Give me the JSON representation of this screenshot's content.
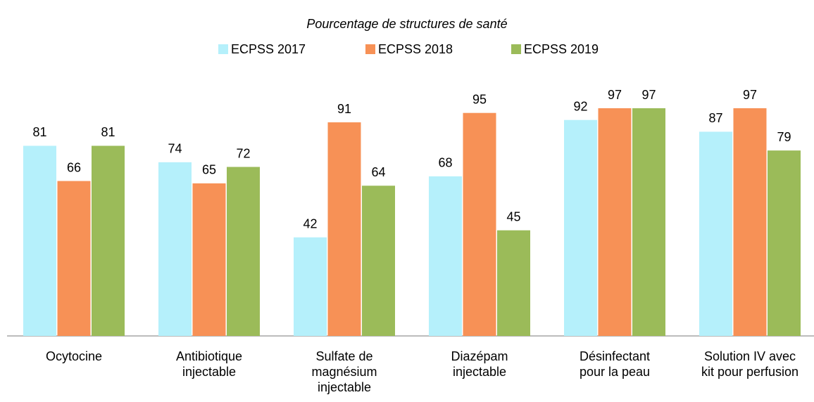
{
  "chart_data": {
    "type": "bar",
    "title": "Pourcentage de structures de santé",
    "categories": [
      "Ocytocine",
      "Antibiotique\ninjectable",
      "Sulfate de\nmagnésium\ninjectable",
      "Diazépam\ninjectable",
      "Désinfectant\npour la peau",
      "Solution IV avec\nkit pour perfusion"
    ],
    "series": [
      {
        "name": "ECPSS 2017",
        "color": "#b5f0fb",
        "values": [
          81,
          74,
          42,
          68,
          92,
          87
        ]
      },
      {
        "name": "ECPSS 2018",
        "color": "#f79156",
        "values": [
          66,
          65,
          91,
          95,
          97,
          97
        ]
      },
      {
        "name": "ECPSS 2019",
        "color": "#9bbb59",
        "values": [
          81,
          72,
          64,
          45,
          97,
          79
        ]
      }
    ]
  }
}
